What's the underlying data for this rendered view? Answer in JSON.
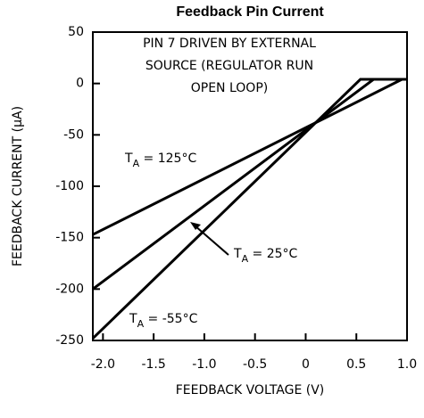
{
  "chart_data": {
    "type": "line",
    "title": "Feedback Pin Current",
    "x_label": "FEEDBACK VOLTAGE (V)",
    "y_label": "FEEDBACK CURRENT (µA)",
    "annotation_lines": [
      "PIN 7 DRIVEN BY EXTERNAL",
      "SOURCE (REGULATOR RUN",
      "OPEN LOOP)"
    ],
    "series": [
      {
        "name": {
          "t": "T",
          "sub": "A",
          "rest": " = 125°C"
        },
        "color": "#000000",
        "x": [
          -2.1,
          0.95,
          1.0
        ],
        "values": [
          -147,
          4,
          4
        ]
      },
      {
        "name": {
          "t": "T",
          "sub": "A",
          "rest": " = 25°C"
        },
        "color": "#000000",
        "x": [
          -2.1,
          0.67,
          1.0
        ],
        "values": [
          -200,
          4,
          4
        ]
      },
      {
        "name": {
          "t": "T",
          "sub": "A",
          "rest": " = -55°C"
        },
        "color": "#000000",
        "x": [
          -2.1,
          0.54,
          1.0
        ],
        "values": [
          -248,
          4,
          4
        ]
      }
    ],
    "xlim": [
      -2.1,
      1.0
    ],
    "xticks": [
      {
        "value": -2.0,
        "label": "-2.0"
      },
      -1.5,
      {
        "value": -1.0,
        "label": "-1.0"
      },
      -0.5,
      0,
      0.5,
      {
        "value": 1.0,
        "label": "1.0"
      }
    ],
    "ylim": [
      -250,
      50
    ],
    "yticks": [
      50,
      0,
      -50,
      -100,
      -150,
      -200,
      -250
    ],
    "grid": false
  }
}
